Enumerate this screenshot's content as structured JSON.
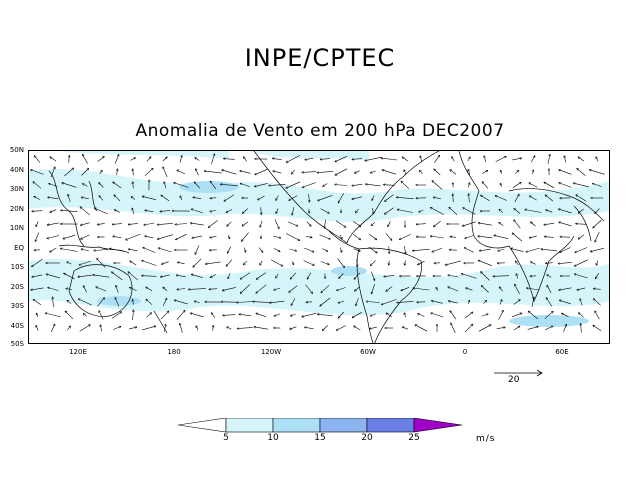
{
  "header": {
    "title": "INPE/CPTEC"
  },
  "map": {
    "subtitle": "Anomalia de Vento em 200 hPa DEC2007",
    "lat_labels": [
      "50N",
      "40N",
      "30N",
      "20N",
      "10N",
      "EQ",
      "10S",
      "20S",
      "30S",
      "40S",
      "50S"
    ],
    "lon_labels": [
      "120E",
      "180",
      "120W",
      "60W",
      "0",
      "60E"
    ],
    "reference_vector": {
      "label": "20",
      "value": 20
    }
  },
  "colorbar": {
    "levels": [
      "5",
      "10",
      "15",
      "20",
      "25"
    ],
    "units": "m/s",
    "colors": [
      "#ffffff",
      "#d6f5fb",
      "#aee0f5",
      "#8cb4f0",
      "#6a7ee6",
      "#4b3fd8",
      "#a000c8"
    ]
  }
}
